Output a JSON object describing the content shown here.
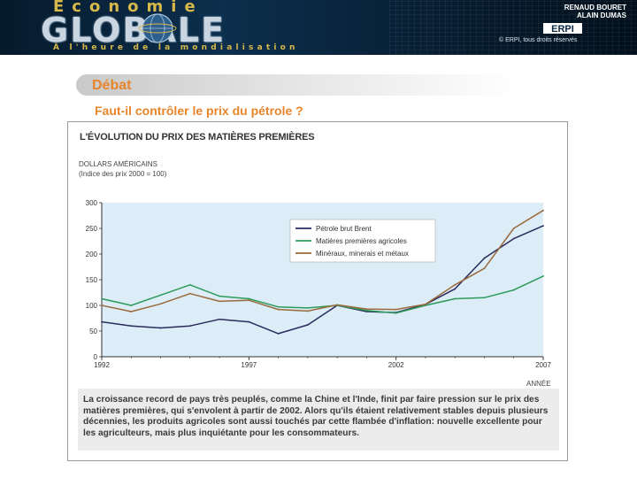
{
  "banner": {
    "top_word": "Économie",
    "main_word": "GLOBALE",
    "tagline": "À l'heure de la mondialisation",
    "authors": [
      "RENAUD BOURET",
      "ALAIN DUMAS"
    ],
    "publisher_logo": "ERPI",
    "copyright": "© ERPI, tous droits réservés"
  },
  "heading": {
    "section": "Débat",
    "question": "Faut-il contrôler le prix du pétrole ?"
  },
  "figure": {
    "title": "L'ÉVOLUTION DU PRIX DES MATIÈRES PREMIÈRES",
    "caption": "La croissance record de pays très peuplés, comme la Chine et l'Inde, finit par faire pression sur le prix des matières premières, qui s'envolent à partir de 2002. Alors qu'ils étaient relativement stables depuis plusieurs décennies, les produits agricoles sont aussi touchés par cette flambée d'inflation: nouvelle excellente pour les agriculteurs, mais plus inquiétante pour les consommateurs."
  },
  "colors": {
    "accent_orange": "#e8852b",
    "brent": "#2b2b5e",
    "agricole": "#2e9a5c",
    "mineraux": "#9a6a3c",
    "plot_bg": "#dcedf7"
  },
  "chart_data": {
    "type": "line",
    "title": "L'ÉVOLUTION DU PRIX DES MATIÈRES PREMIÈRES",
    "ylabel": "DOLLARS AMÉRICAINS",
    "ylabel_sub": "(Indice des prix 2000 = 100)",
    "xlabel": "ANNÉE",
    "x": [
      1992,
      1993,
      1994,
      1995,
      1996,
      1997,
      1998,
      1999,
      2000,
      2001,
      2002,
      2003,
      2004,
      2005,
      2006,
      2007
    ],
    "xlim": [
      1992,
      2007
    ],
    "ylim": [
      0,
      300
    ],
    "x_ticks": [
      1992,
      1997,
      2002,
      2007
    ],
    "y_ticks": [
      0,
      50,
      100,
      150,
      200,
      250,
      300
    ],
    "grid": false,
    "legend_position": "top-right",
    "series": [
      {
        "name": "Pétrole brut Brent",
        "color_key": "brent",
        "values": [
          68,
          60,
          56,
          60,
          73,
          68,
          45,
          62,
          100,
          88,
          86,
          102,
          132,
          192,
          230,
          255
        ]
      },
      {
        "name": "Matières premières agricoles",
        "color_key": "agricole",
        "values": [
          113,
          100,
          120,
          140,
          118,
          113,
          97,
          95,
          100,
          90,
          85,
          100,
          113,
          115,
          130,
          157
        ]
      },
      {
        "name": "Minéraux, minerais et métaux",
        "color_key": "mineraux",
        "values": [
          100,
          88,
          103,
          123,
          108,
          110,
          92,
          89,
          101,
          93,
          92,
          102,
          140,
          172,
          250,
          285
        ]
      }
    ]
  }
}
